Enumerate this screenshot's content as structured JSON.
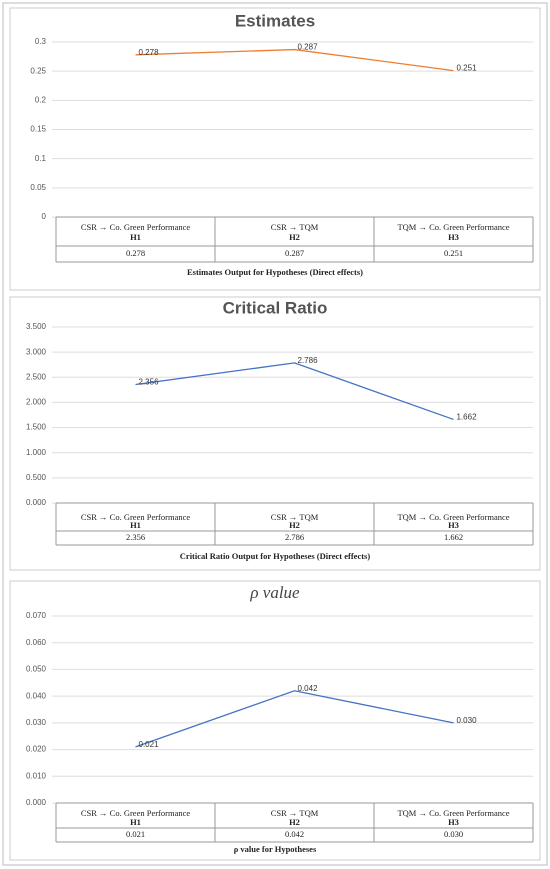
{
  "chart_data": [
    {
      "type": "line",
      "title": "Estimates",
      "categories": [
        "CSR → Co. Green Performance",
        "CSR → TQM",
        "TQM → Co. Green Performance"
      ],
      "hypotheses": [
        "H1",
        "H2",
        "H3"
      ],
      "values": [
        0.278,
        0.287,
        0.251
      ],
      "color": "#ed7d31",
      "ylim": [
        0,
        0.3
      ],
      "yticks": [
        0,
        0.05,
        0.1,
        0.15,
        0.2,
        0.25,
        0.3
      ],
      "grid": true,
      "caption": "Estimates Output for Hypotheses (Direct effects)"
    },
    {
      "type": "line",
      "title": "Critical Ratio",
      "categories": [
        "CSR → Co. Green Performance",
        "CSR → TQM",
        "TQM → Co. Green Performance"
      ],
      "hypotheses": [
        "H1",
        "H2",
        "H3"
      ],
      "values": [
        2.356,
        2.786,
        1.662
      ],
      "color": "#4472c4",
      "ylim": [
        0,
        3.5
      ],
      "yticks": [
        {
          "value": 0,
          "label": "0.000"
        },
        {
          "value": 0.5,
          "label": "0.500"
        },
        {
          "value": 1,
          "label": "1.000"
        },
        {
          "value": 1.5,
          "label": "1.500"
        },
        {
          "value": 2,
          "label": "2.000"
        },
        {
          "value": 2.5,
          "label": "2.500"
        },
        {
          "value": 3,
          "label": "3.000"
        },
        {
          "value": 3.5,
          "label": "3.500"
        }
      ],
      "grid": true,
      "caption": "Critical Ratio Output for Hypotheses (Direct effects)"
    },
    {
      "type": "line",
      "title": "ρ value",
      "categories": [
        "CSR → Co. Green Performance",
        "CSR → TQM",
        "TQM → Co. Green Performance"
      ],
      "hypotheses": [
        "H1",
        "H2",
        "H3"
      ],
      "values": [
        0.021,
        0.042,
        0.03
      ],
      "value_labels": [
        "0.021",
        "0.042",
        "0.030"
      ],
      "color": "#4472c4",
      "ylim": [
        0,
        0.07
      ],
      "yticks": [
        {
          "value": 0,
          "label": "0.000"
        },
        {
          "value": 0.01,
          "label": "0.010"
        },
        {
          "value": 0.02,
          "label": "0.020"
        },
        {
          "value": 0.03,
          "label": "0.030"
        },
        {
          "value": 0.04,
          "label": "0.040"
        },
        {
          "value": 0.05,
          "label": "0.050"
        },
        {
          "value": 0.06,
          "label": "0.060"
        },
        {
          "value": 0.07,
          "label": "0.070"
        }
      ],
      "grid": true,
      "caption": "ρ value for Hypotheses"
    }
  ]
}
